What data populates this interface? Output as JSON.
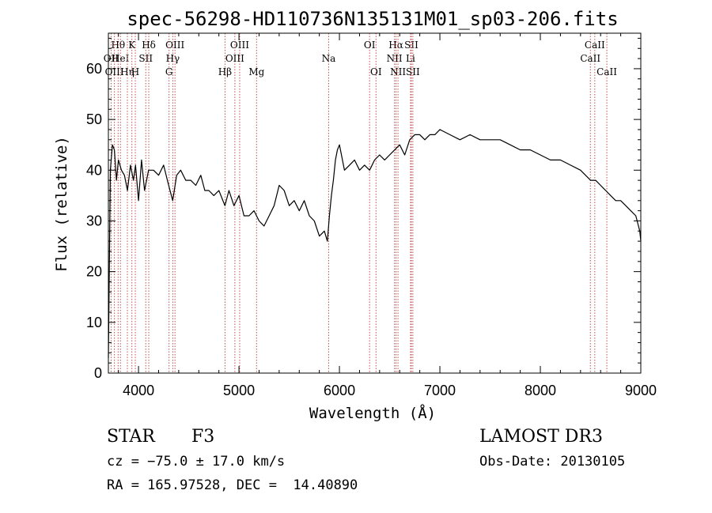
{
  "chart_data": {
    "type": "line",
    "title": "spec-56298-HD110736N135131M01_sp03-206.fits",
    "xlabel": "Wavelength (Å)",
    "ylabel": "Flux (relative)",
    "xlim": [
      3700,
      9000
    ],
    "ylim": [
      0,
      67
    ],
    "x_ticks": [
      4000,
      5000,
      6000,
      7000,
      8000,
      9000
    ],
    "y_ticks": [
      0,
      10,
      20,
      30,
      40,
      50,
      60
    ],
    "grid": false,
    "series": [
      {
        "name": "flux",
        "x": [
          3700,
          3720,
          3740,
          3760,
          3780,
          3800,
          3830,
          3860,
          3890,
          3920,
          3950,
          3970,
          4000,
          4030,
          4060,
          4100,
          4150,
          4200,
          4250,
          4300,
          4340,
          4380,
          4420,
          4470,
          4520,
          4570,
          4620,
          4660,
          4700,
          4750,
          4800,
          4860,
          4900,
          4950,
          5000,
          5050,
          5100,
          5150,
          5200,
          5250,
          5300,
          5350,
          5400,
          5450,
          5500,
          5550,
          5600,
          5650,
          5700,
          5750,
          5800,
          5850,
          5880,
          5900,
          5920,
          5940,
          5960,
          5980,
          6000,
          6050,
          6100,
          6150,
          6200,
          6250,
          6300,
          6350,
          6400,
          6450,
          6500,
          6550,
          6600,
          6650,
          6700,
          6750,
          6800,
          6850,
          6900,
          6950,
          7000,
          7100,
          7200,
          7300,
          7400,
          7500,
          7600,
          7700,
          7800,
          7900,
          8000,
          8100,
          8200,
          8300,
          8400,
          8500,
          8550,
          8600,
          8650,
          8700,
          8750,
          8800,
          8850,
          8900,
          8950,
          8990,
          9000
        ],
        "values": [
          3,
          40,
          45,
          44,
          38,
          42,
          40,
          39,
          36,
          41,
          38,
          41,
          34,
          42,
          36,
          40,
          40,
          39,
          41,
          37,
          34,
          39,
          40,
          38,
          38,
          37,
          39,
          36,
          36,
          35,
          36,
          33,
          36,
          33,
          35,
          31,
          31,
          32,
          30,
          29,
          31,
          33,
          37,
          36,
          33,
          34,
          32,
          34,
          31,
          30,
          27,
          28,
          26,
          31,
          35,
          38,
          42,
          44,
          45,
          40,
          41,
          42,
          40,
          41,
          40,
          42,
          43,
          42,
          43,
          44,
          45,
          43,
          46,
          47,
          47,
          46,
          47,
          47,
          48,
          47,
          46,
          47,
          46,
          46,
          46,
          45,
          44,
          44,
          43,
          42,
          42,
          41,
          40,
          38,
          38,
          37,
          36,
          35,
          34,
          34,
          33,
          32,
          31,
          28,
          26
        ]
      }
    ],
    "spectral_lines": [
      {
        "label": "Hθ",
        "x": 3797,
        "row": 1
      },
      {
        "label": "OII",
        "x": 3727,
        "row": 2
      },
      {
        "label": "HeI",
        "x": 3820,
        "row": 2
      },
      {
        "label": "K",
        "x": 3934,
        "row": 1
      },
      {
        "label": "SII",
        "x": 4072,
        "row": 2
      },
      {
        "label": "Hδ",
        "x": 4102,
        "row": 1
      },
      {
        "label": "Hη",
        "x": 3889,
        "row": 3
      },
      {
        "label": "OIII",
        "x": 3760,
        "row": 3
      },
      {
        "label": "H",
        "x": 3968,
        "row": 3
      },
      {
        "label": "OIII",
        "x": 4363,
        "row": 1
      },
      {
        "label": "Hγ",
        "x": 4341,
        "row": 2
      },
      {
        "label": "G",
        "x": 4304,
        "row": 3
      },
      {
        "label": "OIII",
        "x": 5007,
        "row": 1
      },
      {
        "label": "OIII",
        "x": 4959,
        "row": 2
      },
      {
        "label": "Hβ",
        "x": 4861,
        "row": 3
      },
      {
        "label": "Mg",
        "x": 5175,
        "row": 3
      },
      {
        "label": "Na",
        "x": 5893,
        "row": 2
      },
      {
        "label": "OI",
        "x": 6300,
        "row": 1
      },
      {
        "label": "OI",
        "x": 6364,
        "row": 3
      },
      {
        "label": "Hα",
        "x": 6563,
        "row": 1
      },
      {
        "label": "NII",
        "x": 6548,
        "row": 2
      },
      {
        "label": "NII",
        "x": 6583,
        "row": 3
      },
      {
        "label": "SII",
        "x": 6716,
        "row": 1
      },
      {
        "label": "Li",
        "x": 6708,
        "row": 2
      },
      {
        "label": "SII",
        "x": 6731,
        "row": 3
      },
      {
        "label": "CaII",
        "x": 8542,
        "row": 1
      },
      {
        "label": "CaII",
        "x": 8498,
        "row": 2
      },
      {
        "label": "CaII",
        "x": 8662,
        "row": 3
      }
    ]
  },
  "info": {
    "class_label": "STAR",
    "subclass": "F3",
    "survey": "LAMOST DR3",
    "redshift": "cz = −75.0 ± 17.0 km/s",
    "obs_date": "Obs-Date: 20130105",
    "coords": "RA = 165.97528, DEC =  14.40890"
  },
  "colors": {
    "line_marker": "#c0504d",
    "spectrum": "#000000"
  }
}
